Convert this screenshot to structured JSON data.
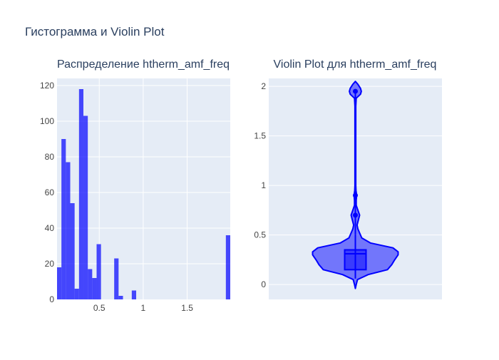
{
  "figure": {
    "title": "Гистограмма и Violin Plot"
  },
  "colors": {
    "plot_bg": "#e5ecf6",
    "grid": "#ffffff",
    "text": "#2a3f5f",
    "tick_text": "#444444",
    "bar_fill": "#0000ff",
    "bar_opacity": 0.7,
    "violin_line": "#0000ff",
    "violin_fill": "#0000ff",
    "violin_fill_opacity": 0.5
  },
  "chart_data": [
    {
      "type": "bar",
      "subtitle": "Распределение htherm_amf_freq",
      "x_tick_labels": [
        "0.5",
        "1",
        "1.5"
      ],
      "x_ticks": [
        0.5,
        1,
        1.5
      ],
      "y_tick_labels": [
        "0",
        "20",
        "40",
        "60",
        "80",
        "100",
        "120"
      ],
      "y_ticks": [
        0,
        20,
        40,
        60,
        80,
        100,
        120
      ],
      "xlim": [
        0.02,
        1.99
      ],
      "ylim": [
        0,
        124
      ],
      "grid": true,
      "bins": [
        {
          "x0": 0.02,
          "x1": 0.07,
          "count": 18
        },
        {
          "x0": 0.07,
          "x1": 0.12,
          "count": 90
        },
        {
          "x0": 0.12,
          "x1": 0.17,
          "count": 77
        },
        {
          "x0": 0.17,
          "x1": 0.22,
          "count": 54
        },
        {
          "x0": 0.22,
          "x1": 0.27,
          "count": 6
        },
        {
          "x0": 0.27,
          "x1": 0.32,
          "count": 118
        },
        {
          "x0": 0.32,
          "x1": 0.37,
          "count": 103
        },
        {
          "x0": 0.37,
          "x1": 0.42,
          "count": 17
        },
        {
          "x0": 0.42,
          "x1": 0.47,
          "count": 12
        },
        {
          "x0": 0.47,
          "x1": 0.52,
          "count": 31
        },
        {
          "x0": 0.67,
          "x1": 0.72,
          "count": 23
        },
        {
          "x0": 0.72,
          "x1": 0.77,
          "count": 2
        },
        {
          "x0": 0.87,
          "x1": 0.92,
          "count": 5
        },
        {
          "x0": 1.94,
          "x1": 1.99,
          "count": 36
        }
      ]
    },
    {
      "type": "violin",
      "subtitle": "Violin Plot для htherm_amf_freq",
      "y_tick_labels": [
        "0",
        "0.5",
        "1",
        "1.5",
        "2"
      ],
      "y_ticks": [
        0,
        0.5,
        1,
        1.5,
        2
      ],
      "ylim": [
        -0.15,
        2.08
      ],
      "grid": true,
      "box": {
        "min": 0.06,
        "q1": 0.15,
        "median": 0.31,
        "q3": 0.35,
        "max": 0.51
      },
      "outliers": [
        0.7,
        0.9,
        1.95
      ],
      "density": [
        [
          -0.04,
          0.0
        ],
        [
          0.0,
          0.02
        ],
        [
          0.05,
          0.05
        ],
        [
          0.1,
          0.3
        ],
        [
          0.15,
          0.75
        ],
        [
          0.2,
          0.85
        ],
        [
          0.25,
          0.92
        ],
        [
          0.3,
          1.0
        ],
        [
          0.33,
          1.0
        ],
        [
          0.37,
          0.88
        ],
        [
          0.42,
          0.35
        ],
        [
          0.47,
          0.15
        ],
        [
          0.52,
          0.1
        ],
        [
          0.56,
          0.06
        ],
        [
          0.6,
          0.04
        ],
        [
          0.65,
          0.07
        ],
        [
          0.7,
          0.1
        ],
        [
          0.75,
          0.06
        ],
        [
          0.8,
          0.02
        ],
        [
          0.85,
          0.02
        ],
        [
          0.9,
          0.03
        ],
        [
          0.95,
          0.015
        ],
        [
          1.0,
          0.01
        ],
        [
          1.2,
          0.01
        ],
        [
          1.5,
          0.01
        ],
        [
          1.8,
          0.01
        ],
        [
          1.88,
          0.02
        ],
        [
          1.92,
          0.12
        ],
        [
          1.95,
          0.14
        ],
        [
          1.98,
          0.12
        ],
        [
          2.02,
          0.06
        ],
        [
          2.05,
          0.0
        ]
      ]
    }
  ]
}
